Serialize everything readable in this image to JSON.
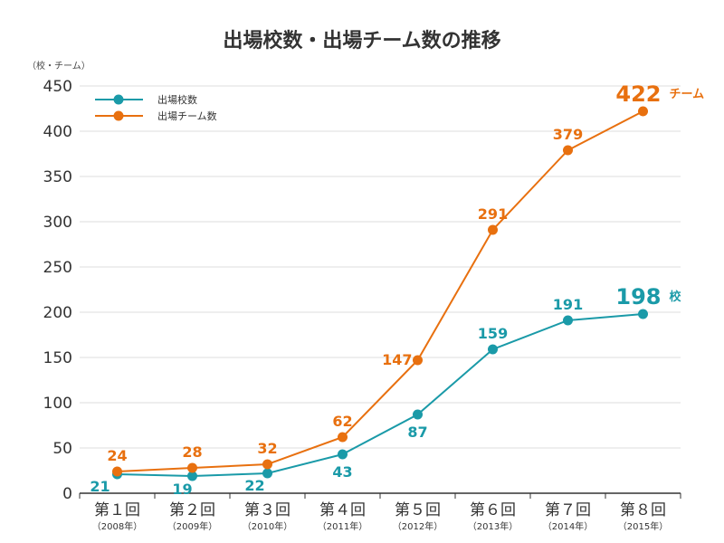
{
  "chart_data": {
    "type": "line",
    "title": "出場校数・出場チーム数の推移",
    "unit_label": "（校・チーム）",
    "categories": [
      "第１回",
      "第２回",
      "第３回",
      "第４回",
      "第５回",
      "第６回",
      "第７回",
      "第８回"
    ],
    "subcategories": [
      "（2008年）",
      "（2009年）",
      "（2010年）",
      "（2011年）",
      "（2012年）",
      "（2013年）",
      "（2014年）",
      "（2015年）"
    ],
    "ylim": [
      0,
      450
    ],
    "yticks": [
      0,
      50,
      100,
      150,
      200,
      250,
      300,
      350,
      400,
      450
    ],
    "grid": true,
    "legend_position": "top-left",
    "series": [
      {
        "name": "出場校数",
        "color": "#1a9aa8",
        "values": [
          21,
          19,
          22,
          43,
          87,
          159,
          191,
          198
        ],
        "final_label": "198",
        "final_unit": "校"
      },
      {
        "name": "出場チーム数",
        "color": "#e8700f",
        "values": [
          24,
          28,
          32,
          62,
          147,
          291,
          379,
          422
        ],
        "final_label": "422",
        "final_unit": "チーム"
      }
    ]
  }
}
